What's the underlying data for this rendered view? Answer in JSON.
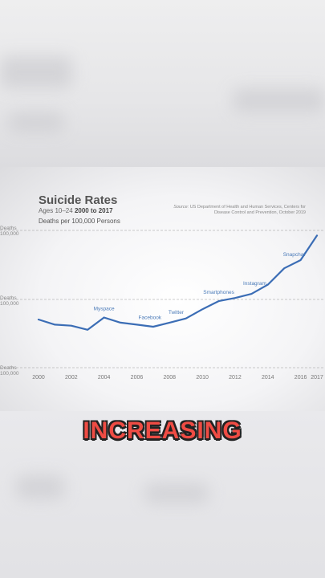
{
  "chart_data": {
    "type": "line",
    "title": "Suicide Rates",
    "subtitle_prefix": "Ages 10–24",
    "subtitle_range": "2000 to 2017",
    "ylabel": "Deaths per 100,000 Persons",
    "source_prefix": "Source:",
    "source_text": "US Department of Health and Human Services, Centers for Disease Control and Prevention, October 2019",
    "y_ticks": [
      {
        "line1": "Deaths",
        "line2": "100,000"
      },
      {
        "line1": "Deaths",
        "line2": "100,000"
      },
      {
        "line1": "Deaths",
        "line2": "100,000"
      }
    ],
    "x_tick_labels": [
      "2000",
      "2002",
      "2004",
      "2006",
      "2008",
      "2010",
      "2012",
      "2014",
      "2016",
      "2017"
    ],
    "x": [
      2000,
      2001,
      2002,
      2003,
      2004,
      2005,
      2006,
      2007,
      2008,
      2009,
      2010,
      2011,
      2012,
      2013,
      2014,
      2015,
      2016,
      2017
    ],
    "series": [
      {
        "values": [
          6.8,
          6.3,
          6.2,
          5.8,
          7.0,
          6.5,
          6.3,
          6.1,
          6.5,
          6.9,
          7.8,
          8.6,
          8.9,
          9.3,
          10.2,
          11.8,
          12.6,
          15.0
        ]
      }
    ],
    "ylim": [
      2.1,
      15.5
    ],
    "annotations": [
      {
        "text": "Myspace",
        "x": 2004
      },
      {
        "text": "Facebook",
        "x": 2006.8
      },
      {
        "text": "Twitter",
        "x": 2008.4
      },
      {
        "text": "Smartphones",
        "x": 2011
      },
      {
        "text": "Instagram",
        "x": 2013.2
      },
      {
        "text": "Snapchat",
        "x": 2015.6
      }
    ],
    "grid": true
  },
  "overlay_caption": "INCREASING",
  "colors": {
    "line": "#3b6db5",
    "annotation": "#4a7ab8",
    "grid": "#9a9a9a"
  }
}
